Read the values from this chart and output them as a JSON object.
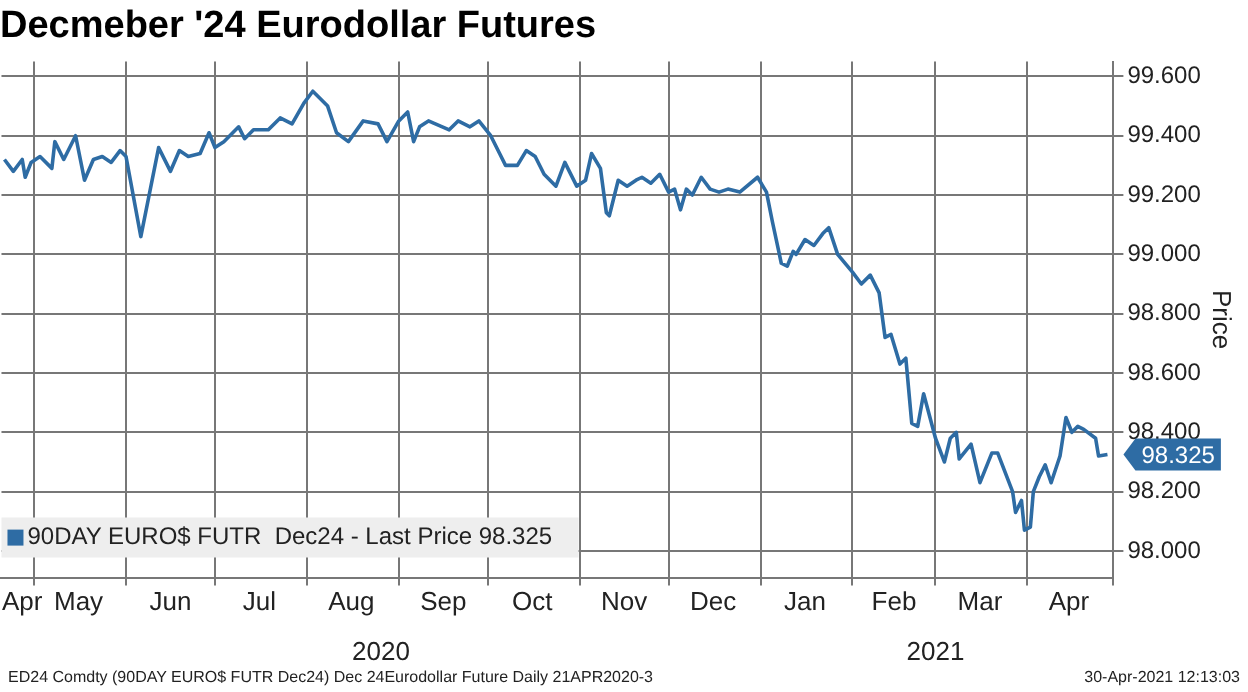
{
  "chart_data": {
    "type": "line",
    "title": "Decmeber '24 Eurodollar Futures",
    "ylabel": "Price",
    "annotations": [
      {
        "text": "98.325",
        "x": "2021-04-28",
        "y": 98.325
      },
      "ED24 Comdty (90DAY EURO$ FUTR  Dec24) Dec 24Eurodollar Future  Daily 21APR2020-3",
      "30-Apr-2021 12:13:03"
    ],
    "x": [
      "2020-04-21",
      "2020-04-24",
      "2020-04-27",
      "2020-04-28",
      "2020-04-30",
      "2020-05-03",
      "2020-05-07",
      "2020-05-08",
      "2020-05-11",
      "2020-05-15",
      "2020-05-18",
      "2020-05-21",
      "2020-05-24",
      "2020-05-27",
      "2020-05-30",
      "2020-06-01",
      "2020-06-06",
      "2020-06-12",
      "2020-06-16",
      "2020-06-19",
      "2020-06-22",
      "2020-06-26",
      "2020-06-29",
      "2020-07-01",
      "2020-07-04",
      "2020-07-09",
      "2020-07-11",
      "2020-07-14",
      "2020-07-19",
      "2020-07-23",
      "2020-07-27",
      "2020-07-31",
      "2020-08-03",
      "2020-08-08",
      "2020-08-11",
      "2020-08-15",
      "2020-08-20",
      "2020-08-25",
      "2020-08-28",
      "2020-09-01",
      "2020-09-04",
      "2020-09-06",
      "2020-09-08",
      "2020-09-11",
      "2020-09-18",
      "2020-09-21",
      "2020-09-25",
      "2020-09-28",
      "2020-10-02",
      "2020-10-05",
      "2020-10-07",
      "2020-10-11",
      "2020-10-14",
      "2020-10-17",
      "2020-10-20",
      "2020-10-24",
      "2020-10-27",
      "2020-10-31",
      "2020-11-03",
      "2020-11-05",
      "2020-11-08",
      "2020-11-10",
      "2020-11-11",
      "2020-11-14",
      "2020-11-17",
      "2020-11-20",
      "2020-11-22",
      "2020-11-25",
      "2020-11-28",
      "2020-12-01",
      "2020-12-03",
      "2020-12-05",
      "2020-12-07",
      "2020-12-09",
      "2020-12-12",
      "2020-12-15",
      "2020-12-18",
      "2020-12-21",
      "2020-12-25",
      "2020-12-31",
      "2021-01-03",
      "2021-01-05",
      "2021-01-08",
      "2021-01-10",
      "2021-01-12",
      "2021-01-13",
      "2021-01-16",
      "2021-01-19",
      "2021-01-22",
      "2021-01-24",
      "2021-01-27",
      "2021-02-01",
      "2021-02-04",
      "2021-02-07",
      "2021-02-10",
      "2021-02-12",
      "2021-02-14",
      "2021-02-17",
      "2021-02-19",
      "2021-02-21",
      "2021-02-23",
      "2021-02-25",
      "2021-03-01",
      "2021-03-04",
      "2021-03-06",
      "2021-03-08",
      "2021-03-09",
      "2021-03-13",
      "2021-03-16",
      "2021-03-20",
      "2021-03-22",
      "2021-03-27",
      "2021-03-28",
      "2021-03-30",
      "2021-03-31",
      "2021-04-02",
      "2021-04-03",
      "2021-04-05",
      "2021-04-07",
      "2021-04-09",
      "2021-04-12",
      "2021-04-14",
      "2021-04-16",
      "2021-04-18",
      "2021-04-20",
      "2021-04-24",
      "2021-04-25",
      "2021-04-28"
    ],
    "series": [
      {
        "name": "90DAY EURO$ FUTR  Dec24 - Last Price 98.325",
        "color": "#2e6ca4",
        "values": [
          99.32,
          99.28,
          99.32,
          99.26,
          99.31,
          99.33,
          99.29,
          99.38,
          99.32,
          99.4,
          99.25,
          99.32,
          99.33,
          99.31,
          99.35,
          99.33,
          99.06,
          99.36,
          99.28,
          99.35,
          99.33,
          99.34,
          99.41,
          99.36,
          99.38,
          99.43,
          99.39,
          99.42,
          99.42,
          99.46,
          99.44,
          99.51,
          99.55,
          99.5,
          99.41,
          99.38,
          99.45,
          99.44,
          99.38,
          99.45,
          99.48,
          99.38,
          99.43,
          99.45,
          99.42,
          99.45,
          99.43,
          99.45,
          99.4,
          99.34,
          99.3,
          99.3,
          99.35,
          99.33,
          99.27,
          99.23,
          99.31,
          99.23,
          99.25,
          99.34,
          99.29,
          99.14,
          99.13,
          99.25,
          99.23,
          99.25,
          99.26,
          99.24,
          99.27,
          99.21,
          99.22,
          99.15,
          99.22,
          99.2,
          99.26,
          99.22,
          99.21,
          99.22,
          99.21,
          99.26,
          99.21,
          99.11,
          98.97,
          98.96,
          99.01,
          99.0,
          99.05,
          99.03,
          99.07,
          99.09,
          99.0,
          98.94,
          98.9,
          98.93,
          98.87,
          98.72,
          98.73,
          98.63,
          98.65,
          98.43,
          98.42,
          98.53,
          98.38,
          98.3,
          98.38,
          98.4,
          98.31,
          98.36,
          98.23,
          98.33,
          98.33,
          98.2,
          98.13,
          98.17,
          98.07,
          98.08,
          98.2,
          98.25,
          98.29,
          98.23,
          98.32,
          98.45,
          98.4,
          98.42,
          98.41,
          98.38,
          98.32,
          98.325
        ]
      }
    ],
    "xlim": [
      "2020-04-20",
      "2021-04-30"
    ],
    "xticks": [
      {
        "value": "2020-04-27",
        "label": "Apr"
      },
      {
        "value": "2020-05-01",
        "label": null
      },
      {
        "value": "2020-05-16",
        "label": "May"
      },
      {
        "value": "2020-06-01",
        "label": null
      },
      {
        "value": "2020-06-16",
        "label": "Jun"
      },
      {
        "value": "2020-07-01",
        "label": null
      },
      {
        "value": "2020-07-16",
        "label": "Jul"
      },
      {
        "value": "2020-08-01",
        "label": null
      },
      {
        "value": "2020-08-16",
        "label": "Aug"
      },
      {
        "value": "2020-09-01",
        "label": null
      },
      {
        "value": "2020-09-16",
        "label": "Sep"
      },
      {
        "value": "2020-10-01",
        "label": null
      },
      {
        "value": "2020-10-16",
        "label": "Oct"
      },
      {
        "value": "2020-11-01",
        "label": null
      },
      {
        "value": "2020-11-16",
        "label": "Nov"
      },
      {
        "value": "2020-12-01",
        "label": null
      },
      {
        "value": "2020-12-16",
        "label": "Dec"
      },
      {
        "value": "2021-01-01",
        "label": null
      },
      {
        "value": "2021-01-16",
        "label": "Jan"
      },
      {
        "value": "2021-02-01",
        "label": null
      },
      {
        "value": "2021-02-15",
        "label": "Feb"
      },
      {
        "value": "2021-03-01",
        "label": null
      },
      {
        "value": "2021-03-16",
        "label": "Mar"
      },
      {
        "value": "2021-04-01",
        "label": null
      },
      {
        "value": "2021-04-15",
        "label": "Apr"
      },
      {
        "value": "2021-04-30",
        "label": null
      }
    ],
    "x2lim": [
      "2020-04-20",
      "2021-04-30"
    ],
    "x2ticks": [
      {
        "value": "2020-08-26",
        "label": "2020"
      },
      {
        "value": "2021-03-01",
        "label": "2021"
      }
    ],
    "ylim": [
      97.91,
      99.65
    ],
    "yticks": [
      {
        "value": 98,
        "label": "98.000"
      },
      {
        "value": 98.2,
        "label": "98.200"
      },
      {
        "value": 98.4,
        "label": "98.400"
      },
      {
        "value": 98.6,
        "label": "98.600"
      },
      {
        "value": 98.8,
        "label": "98.800"
      },
      {
        "value": 99,
        "label": "99.000"
      },
      {
        "value": 99.2,
        "label": "99.200"
      },
      {
        "value": 99.4,
        "label": "99.400"
      },
      {
        "value": 99.6,
        "label": "99.600"
      }
    ],
    "grid": true,
    "legend": "bottom left",
    "marker": "none",
    "line_style": "solid"
  }
}
